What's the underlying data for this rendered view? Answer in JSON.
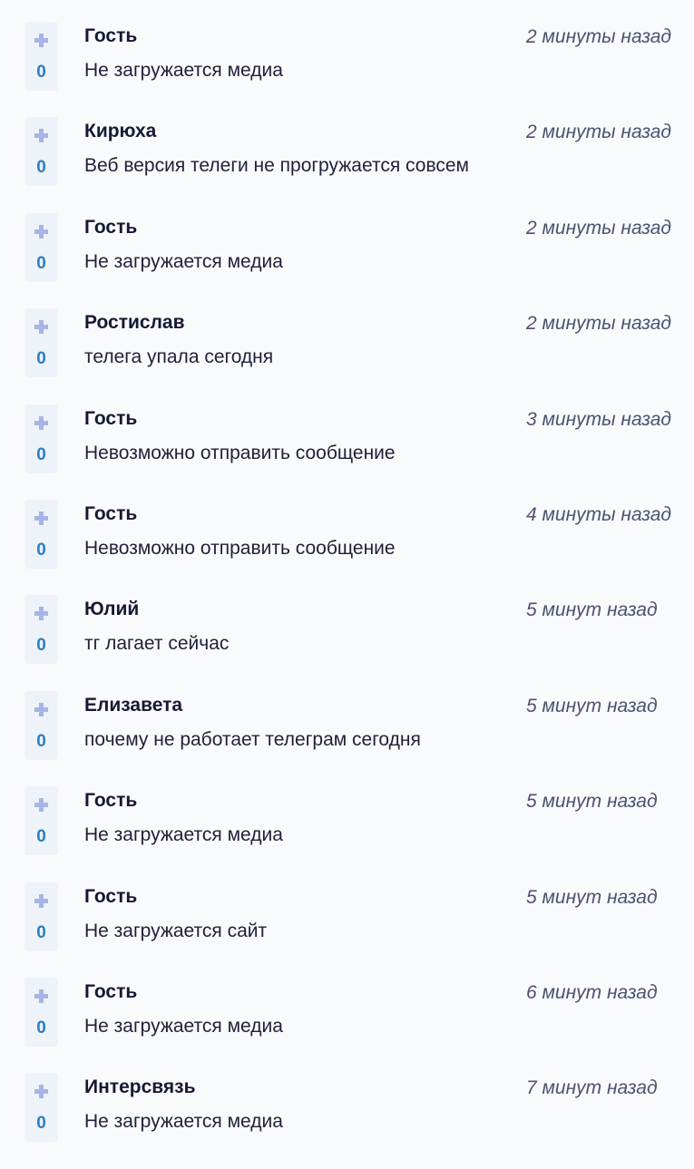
{
  "comments": [
    {
      "name": "Гость",
      "text": "Не загружается медиа",
      "time": "2 минуты назад",
      "votes": "0"
    },
    {
      "name": "Кирюха",
      "text": "Веб версия телеги не прогружается совсем",
      "time": "2 минуты назад",
      "votes": "0"
    },
    {
      "name": "Гость",
      "text": "Не загружается медиа",
      "time": "2 минуты назад",
      "votes": "0"
    },
    {
      "name": "Ростислав",
      "text": "телега упала сегодня",
      "time": "2 минуты назад",
      "votes": "0"
    },
    {
      "name": "Гость",
      "text": "Невозможно отправить сообщение",
      "time": "3 минуты назад",
      "votes": "0"
    },
    {
      "name": "Гость",
      "text": "Невозможно отправить сообщение",
      "time": "4 минуты назад",
      "votes": "0"
    },
    {
      "name": "Юлий",
      "text": "тг лагает сейчас",
      "time": "5 минут назад",
      "votes": "0"
    },
    {
      "name": "Елизавета",
      "text": "почему не работает телеграм сегодня",
      "time": "5 минут назад",
      "votes": "0"
    },
    {
      "name": "Гость",
      "text": "Не загружается медиа",
      "time": "5 минут назад",
      "votes": "0"
    },
    {
      "name": "Гость",
      "text": "Не загружается сайт",
      "time": "5 минут назад",
      "votes": "0"
    },
    {
      "name": "Гость",
      "text": "Не загружается медиа",
      "time": "6 минут назад",
      "votes": "0"
    },
    {
      "name": "Интерсвязь",
      "text": "Не загружается медиа",
      "time": "7 минут назад",
      "votes": "0"
    }
  ]
}
